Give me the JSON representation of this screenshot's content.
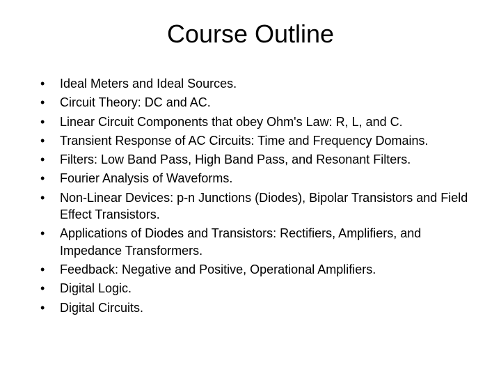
{
  "slide": {
    "title": "Course Outline",
    "title_fontsize": 36,
    "body_fontsize": 18,
    "text_color": "#000000",
    "background_color": "#ffffff",
    "bullets": [
      "Ideal Meters and Ideal Sources.",
      "Circuit Theory: DC and AC.",
      "Linear Circuit Components that obey Ohm's Law: R, L, and C.",
      "Transient Response of AC Circuits: Time and Frequency Domains.",
      "Filters: Low Band Pass, High Band Pass, and Resonant Filters.",
      "Fourier Analysis of Waveforms.",
      "Non-Linear Devices: p-n Junctions (Diodes), Bipolar Transistors and Field Effect Transistors.",
      "Applications of Diodes and Transistors: Rectifiers, Amplifiers, and Impedance Transformers.",
      "Feedback: Negative and Positive, Operational Amplifiers.",
      "Digital Logic.",
      "Digital Circuits."
    ]
  }
}
